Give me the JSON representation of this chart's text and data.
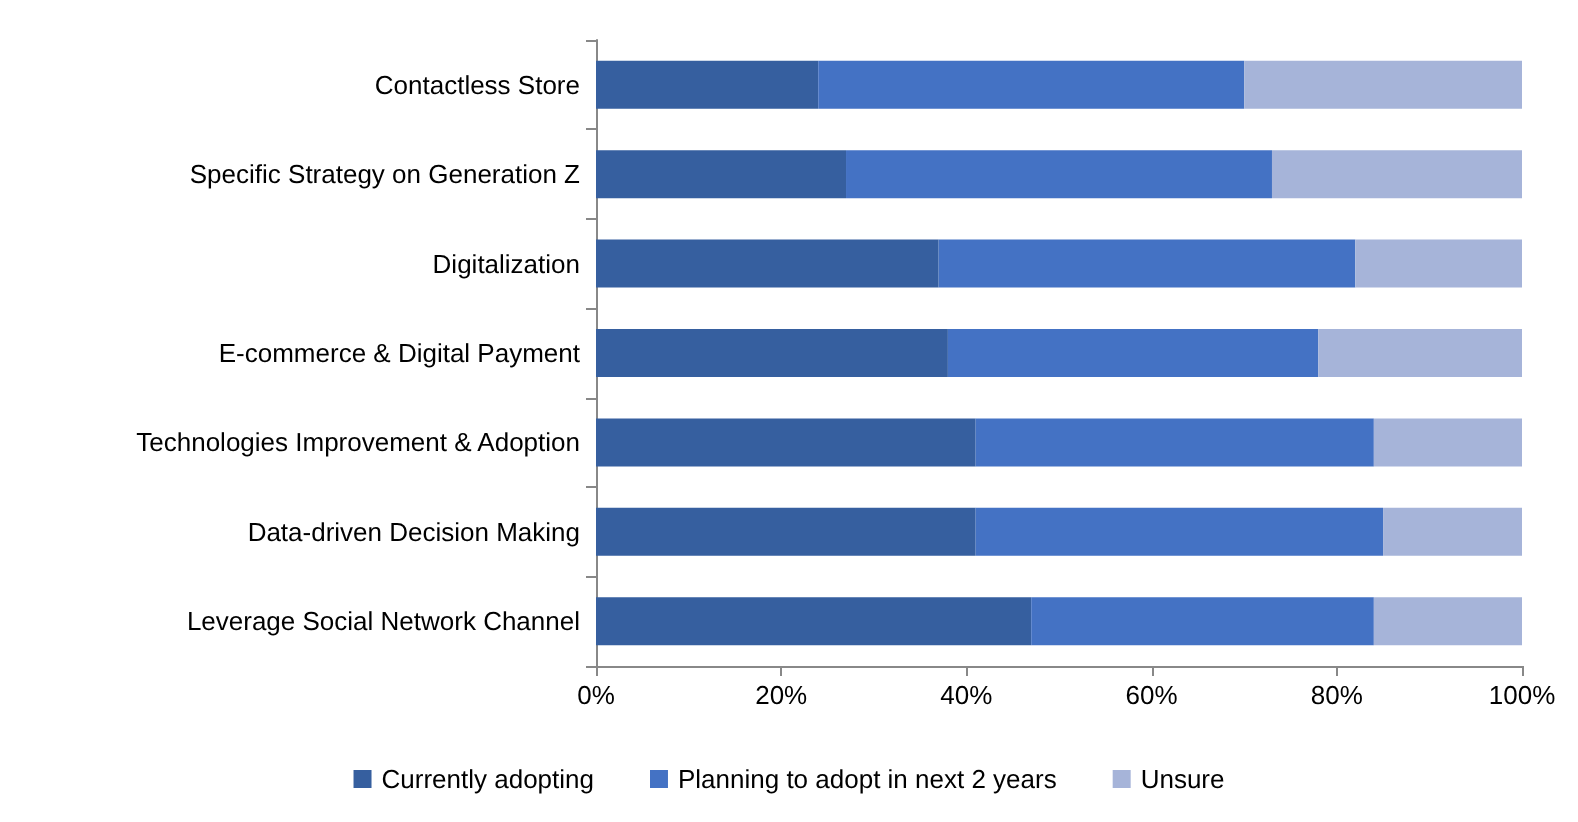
{
  "chart_data": {
    "type": "bar",
    "orientation": "horizontal",
    "stacked": true,
    "categories": [
      "Contactless Store",
      "Specific Strategy on Generation Z",
      "Digitalization",
      "E-commerce & Digital Payment",
      "Technologies Improvement & Adoption",
      "Data-driven Decision Making",
      "Leverage Social Network Channel"
    ],
    "series": [
      {
        "name": "Currently adopting",
        "color": "#365f9f",
        "values": [
          24,
          27,
          37,
          38,
          41,
          41,
          47
        ]
      },
      {
        "name": "Planning to adopt in next 2 years",
        "color": "#4472c4",
        "values": [
          46,
          46,
          45,
          40,
          43,
          44,
          37
        ]
      },
      {
        "name": "Unsure",
        "color": "#a6b4d9",
        "values": [
          30,
          27,
          18,
          22,
          16,
          15,
          16
        ]
      }
    ],
    "xlim": [
      0,
      100
    ],
    "xticks": [
      {
        "value": 0,
        "label": "0%"
      },
      {
        "value": 20,
        "label": "20%"
      },
      {
        "value": 40,
        "label": "40%"
      },
      {
        "value": 60,
        "label": "60%"
      },
      {
        "value": 80,
        "label": "80%"
      },
      {
        "value": 100,
        "label": "100%"
      }
    ],
    "grid": false,
    "legend": "bottom"
  }
}
